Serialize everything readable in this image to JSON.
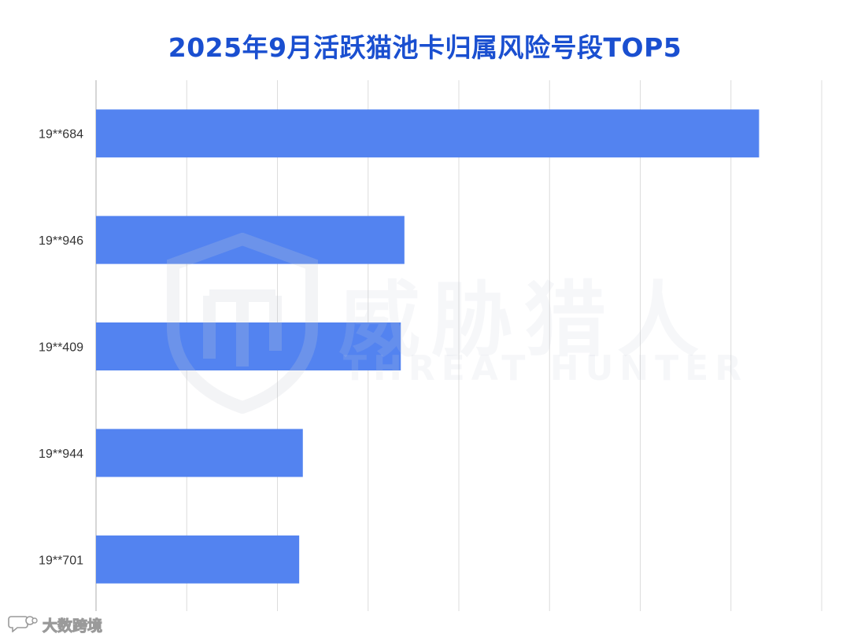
{
  "chart_data": {
    "type": "bar",
    "orientation": "horizontal",
    "title": "2025年9月活跃猫池卡归属风险号段TOP5",
    "categories": [
      "19**684",
      "19**946",
      "19**409",
      "19**944",
      "19**701"
    ],
    "values": [
      73.1,
      34.0,
      33.6,
      22.8,
      22.4
    ],
    "xlim": [
      0,
      80
    ],
    "x_tick_values": [
      0,
      10,
      20,
      30,
      40,
      50,
      60,
      70,
      80
    ],
    "x_tick_labels_shown": false,
    "grid": "vertical",
    "legend": "none",
    "xlabel": "",
    "ylabel": "",
    "bar_color": "#5383f0",
    "grid_color": "#dcdcdc",
    "title_color": "#1a4fd0"
  },
  "watermark": {
    "brand_cn": "威胁猎人",
    "brand_en": "THREAT HUNTER",
    "source": "大数跨境"
  },
  "icons": {
    "watermark_logo": "shield-icon",
    "source_logo": "chat-bubble-icon"
  }
}
